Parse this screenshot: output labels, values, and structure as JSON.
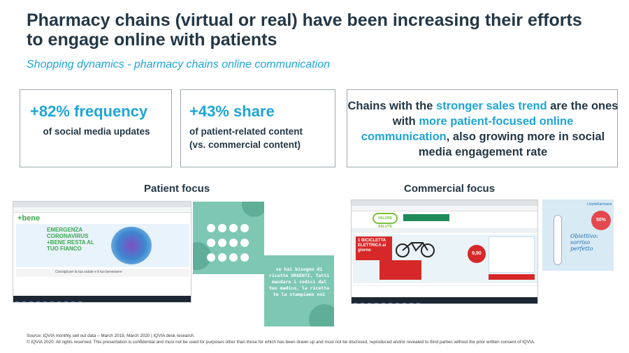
{
  "header": {
    "title": "Pharmacy chains (virtual or real) have been increasing their efforts to engage online with patients",
    "subtitle": "Shopping dynamics - pharmacy chains online communication"
  },
  "kpis": [
    {
      "value": "+82% frequency",
      "description": "of social media updates"
    },
    {
      "value": "+43% share",
      "description_line1": "of patient-related content",
      "description_line2": "(vs. commercial content)"
    }
  ],
  "insight": {
    "part1": "Chains with the ",
    "hl1": "stronger sales trend",
    "part2": " are the ones with ",
    "hl2": "more patient-focused online communication",
    "part3": ", also growing more in social media engagement rate"
  },
  "sections": {
    "patient_label": "Patient focus",
    "commercial_label": "Commercial focus"
  },
  "screenshots": {
    "patient_site": {
      "logo": "+bene",
      "hero_text": "EMERGENZA CORONAVIRUS +BENE RESTA AL TUO FIANCO",
      "tagline": "Consigli per la tua salute e il tuo benessere"
    },
    "patient_social_message": "se hai bisogno di ricette URGENTI, fatti mandare i codici dal tuo medico, la ricetta te la stampiamo noi",
    "commercial_site": {
      "brand": "VALORE SALUTE",
      "promo": "1 BICICLETTA ELETTRICA al giorno",
      "price": "9,90"
    },
    "commercial_social": {
      "brand": "LloydsFarmacia",
      "discount": "50%",
      "slogan": "Obiettivo: sorriso perfetto"
    }
  },
  "footer": {
    "source": "Source: IQVIA monthly sell out data – March 2019, March 2020 | IQVIA desk research.",
    "copyright": "© IQVIA 2020. All rights reserved. This presentation is confidential and must not be used for purposes other than those for which has been drawn up and must not be disclosed, reproduced and/or revealed to third parties without the prior written consent of IQVIA."
  },
  "colors": {
    "accent": "#1ea5d8",
    "title": "#233746",
    "border": "#9ea7ad"
  }
}
